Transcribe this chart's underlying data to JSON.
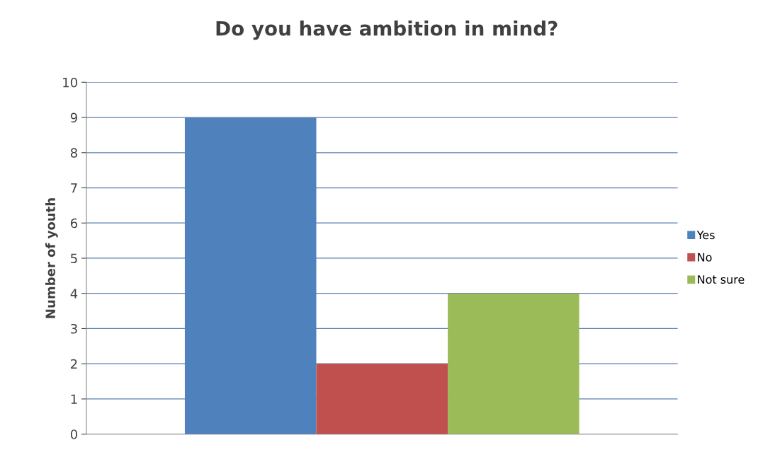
{
  "chart_data": {
    "type": "bar",
    "title": "Do you have ambition in mind?",
    "ylabel": "Number of youth",
    "categories": [
      null
    ],
    "series": [
      {
        "name": "Yes",
        "color": "#4f81bd",
        "values": [
          9
        ]
      },
      {
        "name": "No",
        "color": "#c0504d",
        "values": [
          2
        ]
      },
      {
        "name": "Not sure",
        "color": "#9bbb59",
        "values": [
          4
        ]
      }
    ],
    "ylim": [
      0,
      10
    ],
    "yticks": [
      0,
      1,
      2,
      3,
      4,
      5,
      6,
      7,
      8,
      9,
      10
    ],
    "grid": "y",
    "legend": "right"
  }
}
